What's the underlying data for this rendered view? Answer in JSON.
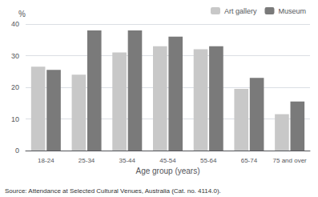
{
  "chart_data": {
    "type": "bar",
    "categories": [
      "18-24",
      "25-34",
      "35-44",
      "45-54",
      "55-64",
      "65-74",
      "75 and over"
    ],
    "series": [
      {
        "name": "Art gallery",
        "color": "#c8c8c8",
        "values": [
          26.5,
          24.0,
          31.0,
          33.0,
          32.0,
          19.5,
          11.5
        ]
      },
      {
        "name": "Museum",
        "color": "#7a7a7a",
        "values": [
          25.5,
          38.0,
          38.0,
          36.0,
          33.0,
          23.0,
          15.5
        ]
      }
    ],
    "xlabel": "Age group (years)",
    "ylabel": "%",
    "ylim": [
      0,
      40
    ],
    "yticks": [
      0,
      10,
      20,
      30,
      40
    ],
    "grid": true,
    "legend": "upper right",
    "annotations": [
      "Source: Attendance at Selected Cultural Venues, Australia (Cat. no. 4114.0)."
    ]
  }
}
